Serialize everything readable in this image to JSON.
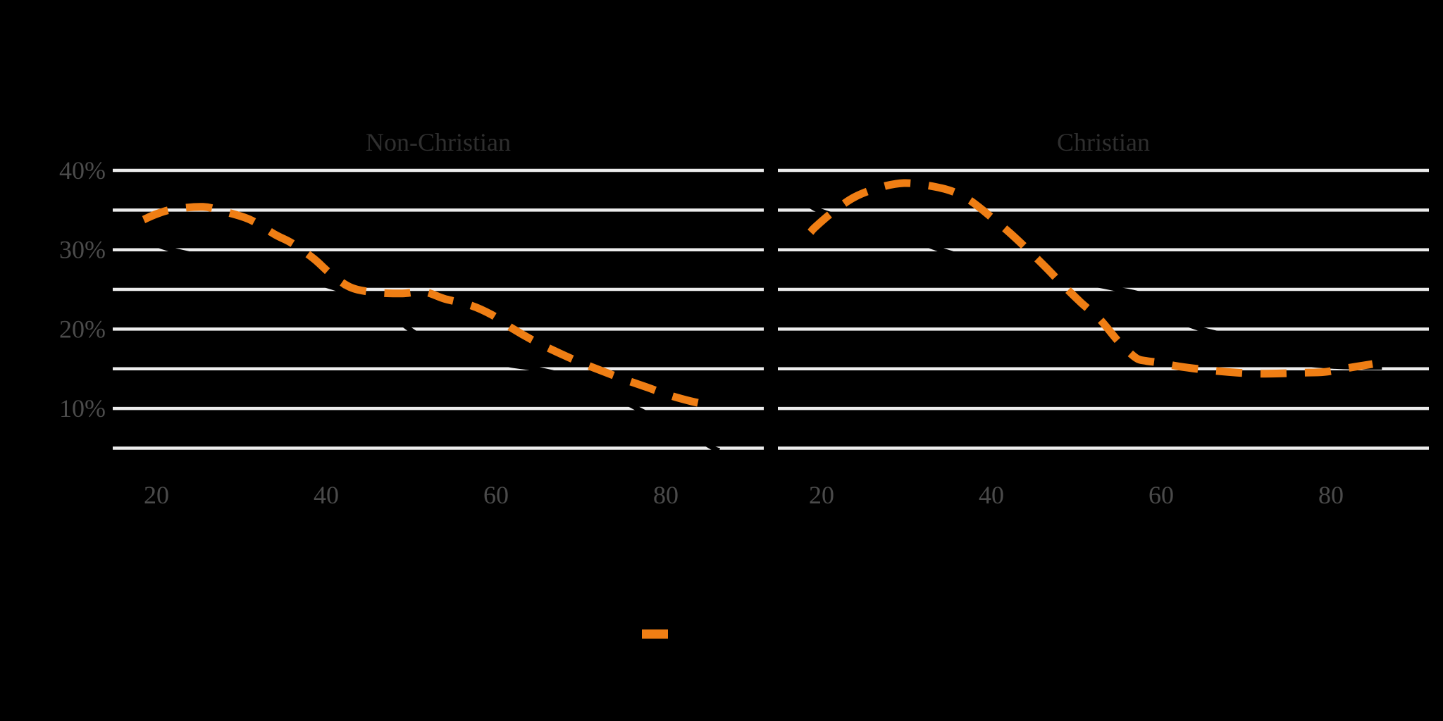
{
  "chart_data": {
    "type": "line",
    "title": "",
    "x_axis": {
      "tick_labels": [
        "20",
        "40",
        "60",
        "80"
      ],
      "tick_values": [
        20,
        40,
        60,
        80
      ],
      "range": [
        14.85,
        91.5
      ]
    },
    "y_axis": {
      "tick_labels": [
        "40%",
        "30%",
        "20%",
        "10%"
      ],
      "tick_values": [
        40,
        30,
        20,
        10
      ],
      "gridline_values": [
        5,
        10,
        15,
        20,
        25,
        30,
        35,
        40
      ],
      "range": [
        5,
        40
      ]
    },
    "grid": "on",
    "colors": {
      "background": "#000000",
      "gridline": "#ECECEC",
      "axis_text": "#4B4B4B",
      "facet_title_text": "#2F2F2F",
      "series_dashed": "#EF7E14",
      "series_solid": "#000000"
    },
    "legend": {
      "position": "bottom-center",
      "visible_marker": "orange-dash",
      "marker_color": "#EF7E14"
    },
    "facets": [
      {
        "label": "Non-Christian",
        "series": [
          {
            "name": "solid-black-line",
            "style": "solid",
            "color": "#000000",
            "points": [
              [
                18.5,
                31.2
              ],
              [
                21.8,
                30
              ],
              [
                26,
                29
              ],
              [
                31,
                27.9
              ],
              [
                36,
                26.7
              ],
              [
                41.5,
                25
              ],
              [
                45.5,
                23.5
              ],
              [
                49.8,
                20
              ],
              [
                53,
                18
              ],
              [
                58,
                16.3
              ],
              [
                61.5,
                15.5
              ],
              [
                64.6,
                15
              ],
              [
                68.5,
                14
              ],
              [
                72.5,
                12.3
              ],
              [
                76.6,
                10
              ],
              [
                80.5,
                7.9
              ],
              [
                83.5,
                6.3
              ],
              [
                85.6,
                5
              ],
              [
                86.3,
                4.7
              ]
            ]
          },
          {
            "name": "dashed-orange-line",
            "style": "dashed",
            "color": "#EF7E14",
            "points": [
              [
                18.5,
                33.8
              ],
              [
                20,
                34.5
              ],
              [
                22,
                35.1
              ],
              [
                25.5,
                35.4
              ],
              [
                28,
                34.8
              ],
              [
                31,
                33.8
              ],
              [
                34,
                31.9
              ],
              [
                36,
                30.8
              ],
              [
                38.5,
                28.9
              ],
              [
                40.6,
                26.9
              ],
              [
                43,
                25.2
              ],
              [
                46,
                24.6
              ],
              [
                49,
                24.5
              ],
              [
                51.5,
                24.7
              ],
              [
                54,
                23.8
              ],
              [
                57,
                23.0
              ],
              [
                59.5,
                21.8
              ],
              [
                61.9,
                20.1
              ],
              [
                64.5,
                18.5
              ],
              [
                67,
                17.2
              ],
              [
                69.7,
                15.9
              ],
              [
                72.3,
                14.8
              ],
              [
                75,
                13.7
              ],
              [
                77.7,
                12.7
              ],
              [
                80.3,
                11.7
              ],
              [
                83,
                10.9
              ],
              [
                84.8,
                10.5
              ]
            ]
          }
        ]
      },
      {
        "label": "Christian",
        "series": [
          {
            "name": "solid-black-line",
            "style": "solid",
            "color": "#000000",
            "points": [
              [
                18.7,
                35.5
              ],
              [
                19.6,
                35
              ],
              [
                22,
                34.2
              ],
              [
                26,
                33.4
              ],
              [
                30.5,
                31.4
              ],
              [
                34,
                30
              ],
              [
                37.5,
                28.8
              ],
              [
                41,
                27.4
              ],
              [
                45,
                26.3
              ],
              [
                48,
                25.9
              ],
              [
                51,
                25.8
              ],
              [
                55,
                25
              ],
              [
                58.5,
                24
              ],
              [
                61.5,
                21.4
              ],
              [
                64.7,
                20
              ],
              [
                68.2,
                19.0
              ],
              [
                71,
                17.5
              ],
              [
                74,
                16.3
              ],
              [
                77,
                15.6
              ],
              [
                80.5,
                15.3
              ],
              [
                83.5,
                15.2
              ],
              [
                86,
                15.2
              ]
            ]
          },
          {
            "name": "dashed-orange-line",
            "style": "dashed",
            "color": "#EF7E14",
            "points": [
              [
                18.7,
                32.2
              ],
              [
                19.3,
                32.9
              ],
              [
                21.5,
                34.9
              ],
              [
                24,
                36.7
              ],
              [
                27,
                37.9
              ],
              [
                29.7,
                38.4
              ],
              [
                32.5,
                38.1
              ],
              [
                35.3,
                37.4
              ],
              [
                37.5,
                36.2
              ],
              [
                40,
                34.1
              ],
              [
                42.2,
                32.1
              ],
              [
                44.3,
                30
              ],
              [
                46.4,
                27.8
              ],
              [
                48.3,
                25.7
              ],
              [
                50.5,
                23.4
              ],
              [
                52.8,
                21.2
              ],
              [
                55,
                18.4
              ],
              [
                57,
                16.4
              ],
              [
                58.2,
                16.0
              ],
              [
                59.5,
                15.8
              ],
              [
                62.1,
                15.3
              ],
              [
                65,
                14.9
              ],
              [
                67.9,
                14.6
              ],
              [
                70.8,
                14.4
              ],
              [
                73.6,
                14.4
              ],
              [
                76.4,
                14.5
              ],
              [
                79.2,
                14.6
              ],
              [
                82,
                15.1
              ],
              [
                84.9,
                15.6
              ]
            ]
          }
        ]
      }
    ]
  }
}
